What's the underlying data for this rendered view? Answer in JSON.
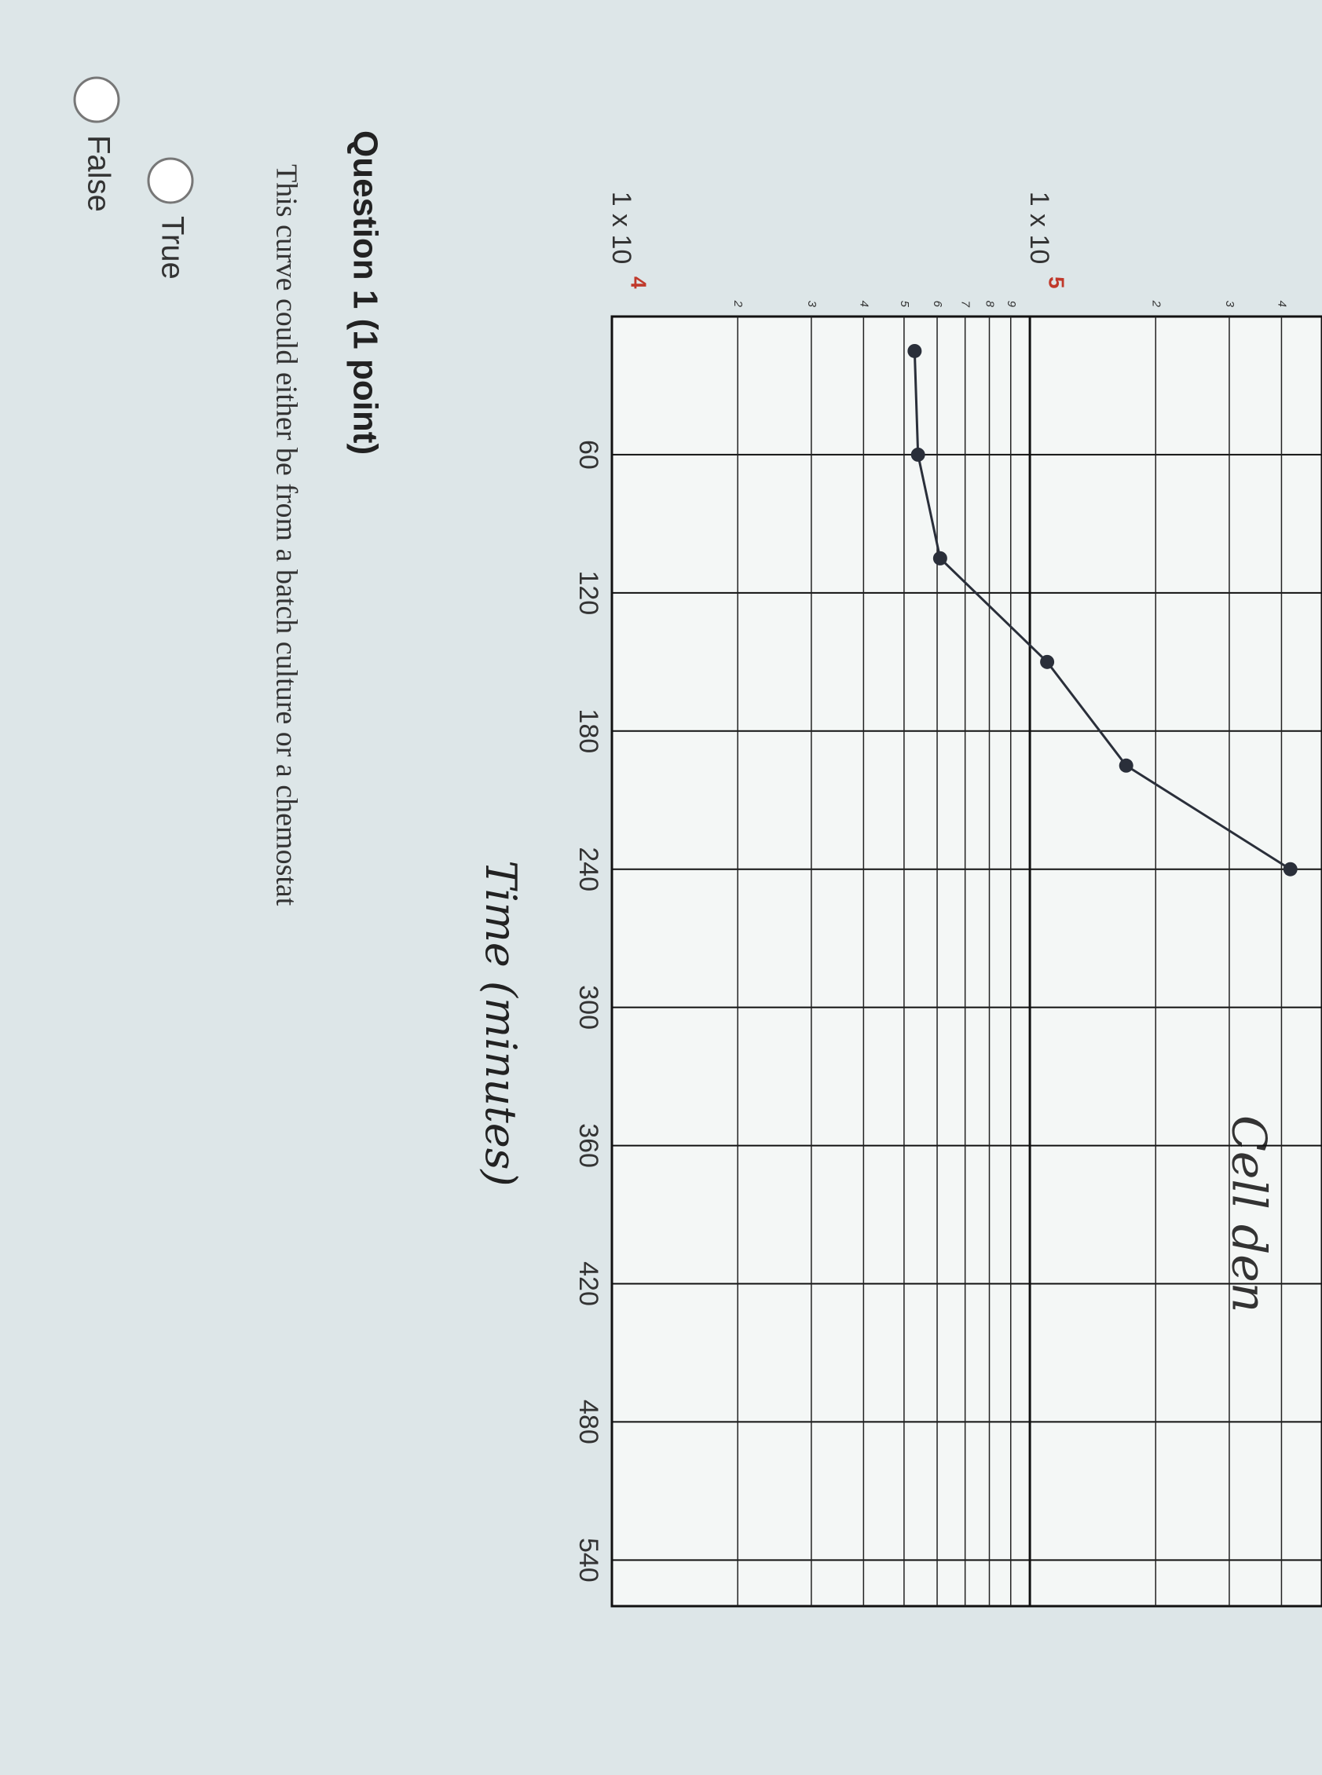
{
  "chart_data": {
    "type": "line",
    "title": "Cell den",
    "x_label": "Time (minutes)",
    "x": [
      15,
      60,
      105,
      150,
      195,
      240
    ],
    "series": [
      {
        "color": "#2a2f3a",
        "values": [
          53000,
          54000,
          61000,
          110000,
          170000,
          420000
        ]
      }
    ],
    "xlim": [
      0,
      560
    ],
    "ylim": [
      10000,
      500000
    ],
    "log_y": true,
    "grid": true,
    "xticks": [
      60,
      120,
      180,
      240,
      300,
      360,
      420,
      480,
      540
    ],
    "yticks": [
      {
        "value": 10000,
        "label": "1 x 10",
        "exponent": "4"
      },
      {
        "value": 100000,
        "label": "1 x 10",
        "exponent": "5"
      }
    ],
    "yminor": [
      {
        "value": 20000,
        "label": "2"
      },
      {
        "value": 30000,
        "label": "3"
      },
      {
        "value": 40000,
        "label": "4"
      },
      {
        "value": 50000,
        "label": "5"
      },
      {
        "value": 60000,
        "label": "6"
      },
      {
        "value": 70000,
        "label": "7"
      },
      {
        "value": 80000,
        "label": "8"
      },
      {
        "value": 90000,
        "label": "9"
      },
      {
        "value": 200000,
        "label": "2"
      },
      {
        "value": 300000,
        "label": "3"
      },
      {
        "value": 400000,
        "label": "4"
      }
    ]
  },
  "question": {
    "title": "Question 1 (1 point)",
    "prompt": "This curve could either be from a batch culture or a chemostat",
    "options": [
      "True",
      "False"
    ]
  }
}
